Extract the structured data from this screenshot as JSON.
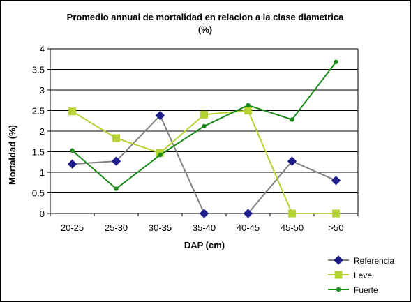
{
  "chart_data": {
    "type": "line",
    "title_line1": "Promedio annual de mortalidad en relacion a la clase diametrica",
    "title_line2": "(%)",
    "xlabel": "DAP (cm)",
    "ylabel": "Mortaldad (%)",
    "categories": [
      "20-25",
      "25-30",
      "30-35",
      "35-40",
      "40-45",
      "45-50",
      ">50"
    ],
    "ylim": [
      0,
      4
    ],
    "yticks": [
      0,
      0.5,
      1,
      1.5,
      2,
      2.5,
      3,
      3.5,
      4
    ],
    "ytick_labels": [
      "0",
      "0.5",
      "1",
      "1.5",
      "2",
      "2.5",
      "3",
      "3.5",
      "4"
    ],
    "grid": "horizontal",
    "legend_position": "bottom-right",
    "series": [
      {
        "name": "Referencia",
        "values": [
          1.2,
          1.27,
          2.38,
          0,
          0,
          1.27,
          0.8
        ],
        "color": "#808080",
        "marker": "diamond",
        "marker_color": "#1F1F8C"
      },
      {
        "name": "Leve",
        "values": [
          2.48,
          1.83,
          1.47,
          2.4,
          2.5,
          0,
          0
        ],
        "color": "#B5D333",
        "marker": "square",
        "marker_color": "#B5D333"
      },
      {
        "name": "Fuerte",
        "values": [
          1.53,
          0.6,
          1.42,
          2.12,
          2.63,
          2.28,
          3.68
        ],
        "color": "#1A8A1A",
        "marker": "circle",
        "marker_color": "#1A8A1A"
      }
    ]
  }
}
